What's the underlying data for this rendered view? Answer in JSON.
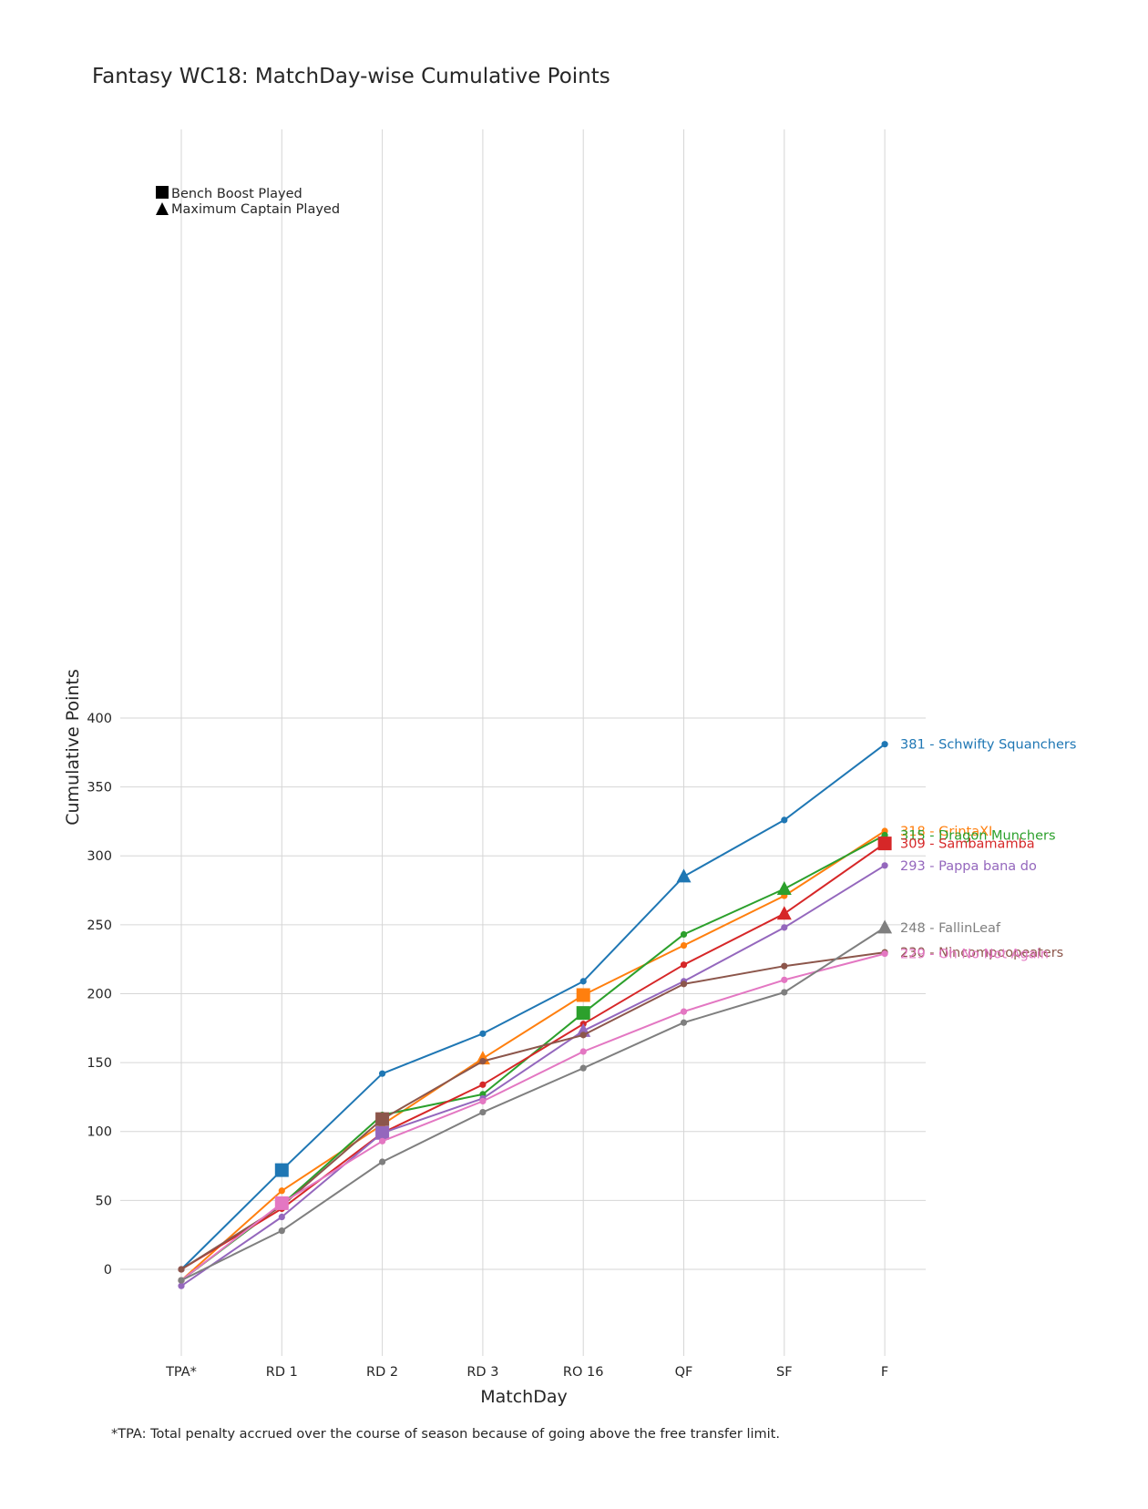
{
  "chart_data": {
    "type": "line",
    "title": "Fantasy WC18: MatchDay-wise Cumulative Points",
    "xlabel": "MatchDay",
    "ylabel": "Cumulative Points",
    "categories": [
      "TPA*",
      "RD 1",
      "RD 2",
      "RD 3",
      "RO 16",
      "QF",
      "SF",
      "F"
    ],
    "ylim": [
      -32,
      415
    ],
    "yticks": [
      0,
      50,
      100,
      150,
      200,
      250,
      300,
      350,
      400
    ],
    "grid": true,
    "legend": {
      "placement": "top-left",
      "entries": [
        {
          "marker": "square",
          "label": "Bench Boost Played"
        },
        {
          "marker": "triangle",
          "label": "Maximum Captain Played"
        }
      ]
    },
    "series": [
      {
        "label": "381 - Schwifty Squanchers",
        "color": "#1f77b4",
        "values": [
          0,
          72,
          142,
          171,
          209,
          285,
          326,
          381
        ],
        "bench_boost_index": 1,
        "max_captain_index": 5
      },
      {
        "label": "318 - GrintaXI",
        "color": "#ff7f0e",
        "values": [
          -8,
          57,
          105,
          153,
          199,
          235,
          271,
          318
        ],
        "bench_boost_index": 4,
        "max_captain_index": 3
      },
      {
        "label": "315 - Dragon Munchers",
        "color": "#2ca02c",
        "values": [
          -8,
          47,
          112,
          127,
          186,
          243,
          276,
          315
        ],
        "bench_boost_index": 4,
        "max_captain_index": 6
      },
      {
        "label": "309 - Sambamamba",
        "color": "#d62728",
        "values": [
          0,
          44,
          99,
          134,
          178,
          221,
          258,
          309
        ],
        "bench_boost_index": 7,
        "max_captain_index": 6
      },
      {
        "label": "293 - Pappa bana do",
        "color": "#9467bd",
        "values": [
          -12,
          38,
          99,
          124,
          173,
          209,
          248,
          293
        ],
        "bench_boost_index": 2,
        "max_captain_index": 4
      },
      {
        "label": "230 - Nincompoopeaters",
        "color": "#8c564b",
        "values": [
          0,
          46,
          109,
          151,
          170,
          207,
          220,
          230
        ],
        "bench_boost_index": 2,
        "max_captain_index": null
      },
      {
        "label": "229 - Oh No Not Again",
        "color": "#e377c2",
        "values": [
          -8,
          48,
          93,
          122,
          158,
          187,
          210,
          229
        ],
        "bench_boost_index": 1,
        "max_captain_index": null
      },
      {
        "label": "248 - FallinLeaf",
        "color": "#7f7f7f",
        "values": [
          -8,
          28,
          78,
          114,
          146,
          179,
          201,
          248
        ],
        "bench_boost_index": null,
        "max_captain_index": 7
      }
    ]
  },
  "footnote": "*TPA: Total penalty accrued over the course of season because of going above the free transfer limit."
}
